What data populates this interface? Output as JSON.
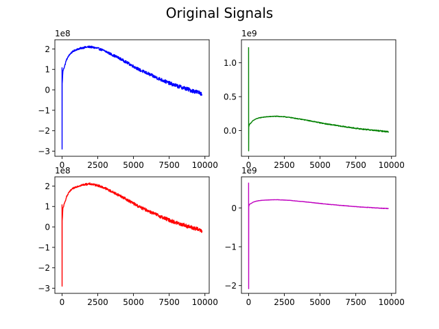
{
  "figure": {
    "title": "Original Signals"
  },
  "chart_data": [
    {
      "type": "line",
      "title": "",
      "xlabel": "",
      "ylabel": "",
      "color": "#0000ff",
      "xlim": [
        -500,
        10300
      ],
      "ylim": [
        -3.25,
        2.45
      ],
      "y_offset_text": "1e8",
      "x_ticks": [
        0,
        2500,
        5000,
        7500,
        10000
      ],
      "x_tick_labels": [
        "0",
        "2500",
        "5000",
        "7500",
        "10000"
      ],
      "y_ticks": [
        -3,
        -2,
        -1,
        0,
        1,
        2
      ],
      "y_tick_labels": [
        "−3",
        "−2",
        "−1",
        "0",
        "1",
        "2"
      ],
      "grid": false,
      "series": [
        {
          "x": [
            0,
            5,
            10,
            30,
            60,
            100,
            200,
            300,
            500,
            700,
            1000,
            1300,
            1600,
            1900,
            2000,
            2200,
            2500,
            3000,
            3500,
            4000,
            4500,
            5000,
            5500,
            6000,
            6500,
            7000,
            7500,
            8000,
            8500,
            9000,
            9500,
            9800
          ],
          "y": [
            1.1,
            -2.9,
            0.3,
            0.5,
            0.9,
            1.0,
            1.2,
            1.45,
            1.7,
            1.85,
            1.97,
            2.03,
            2.08,
            2.1,
            2.1,
            2.07,
            2.03,
            1.9,
            1.72,
            1.55,
            1.35,
            1.15,
            0.95,
            0.8,
            0.63,
            0.48,
            0.33,
            0.2,
            0.1,
            -0.02,
            -0.12,
            -0.18
          ],
          "noise": 0.07
        }
      ]
    },
    {
      "type": "line",
      "title": "",
      "xlabel": "",
      "ylabel": "",
      "color": "#008000",
      "xlim": [
        -500,
        10300
      ],
      "ylim": [
        -0.38,
        1.34
      ],
      "y_offset_text": "1e9",
      "x_ticks": [
        0,
        2500,
        5000,
        7500,
        10000
      ],
      "x_tick_labels": [
        "0",
        "2500",
        "5000",
        "7500",
        "10000"
      ],
      "y_ticks": [
        0,
        0.5,
        1
      ],
      "y_tick_labels": [
        "0.0",
        "0.5",
        "1.0"
      ],
      "grid": false,
      "series": [
        {
          "x": [
            0,
            5,
            10,
            30,
            60,
            100,
            200,
            300,
            500,
            700,
            1000,
            1300,
            1600,
            1900,
            2000,
            2200,
            2500,
            3000,
            3500,
            4000,
            4500,
            5000,
            5500,
            6000,
            6500,
            7000,
            7500,
            8000,
            8500,
            9000,
            9500,
            9800
          ],
          "y": [
            1.23,
            -0.3,
            0.05,
            0.07,
            0.09,
            0.1,
            0.12,
            0.145,
            0.17,
            0.185,
            0.197,
            0.203,
            0.208,
            0.21,
            0.21,
            0.207,
            0.203,
            0.19,
            0.172,
            0.155,
            0.135,
            0.115,
            0.095,
            0.08,
            0.063,
            0.048,
            0.033,
            0.02,
            0.01,
            -0.002,
            -0.012,
            -0.018
          ],
          "noise": 0.006
        }
      ]
    },
    {
      "type": "line",
      "title": "",
      "xlabel": "",
      "ylabel": "",
      "color": "#ff0000",
      "xlim": [
        -500,
        10300
      ],
      "ylim": [
        -3.25,
        2.45
      ],
      "y_offset_text": "1e8",
      "x_ticks": [
        0,
        2500,
        5000,
        7500,
        10000
      ],
      "x_tick_labels": [
        "0",
        "2500",
        "5000",
        "7500",
        "10000"
      ],
      "y_ticks": [
        -3,
        -2,
        -1,
        0,
        1,
        2
      ],
      "y_tick_labels": [
        "−3",
        "−2",
        "−1",
        "0",
        "1",
        "2"
      ],
      "grid": false,
      "series": [
        {
          "x": [
            0,
            5,
            10,
            30,
            60,
            100,
            200,
            300,
            500,
            700,
            1000,
            1300,
            1600,
            1900,
            2000,
            2200,
            2500,
            3000,
            3500,
            4000,
            4500,
            5000,
            5500,
            6000,
            6500,
            7000,
            7500,
            8000,
            8500,
            9000,
            9500,
            9800
          ],
          "y": [
            1.1,
            -2.9,
            0.3,
            0.5,
            0.9,
            1.0,
            1.2,
            1.45,
            1.7,
            1.85,
            1.97,
            2.03,
            2.08,
            2.1,
            2.1,
            2.07,
            2.03,
            1.9,
            1.72,
            1.55,
            1.35,
            1.15,
            0.95,
            0.8,
            0.63,
            0.48,
            0.33,
            0.2,
            0.1,
            -0.02,
            -0.12,
            -0.18
          ],
          "noise": 0.07
        }
      ]
    },
    {
      "type": "line",
      "title": "",
      "xlabel": "",
      "ylabel": "",
      "color": "#bf00bf",
      "xlim": [
        -500,
        10300
      ],
      "ylim": [
        -2.2,
        0.8
      ],
      "y_offset_text": "1e9",
      "x_ticks": [
        0,
        2500,
        5000,
        7500,
        10000
      ],
      "x_tick_labels": [
        "0",
        "2500",
        "5000",
        "7500",
        "10000"
      ],
      "y_ticks": [
        -2,
        -1,
        0
      ],
      "y_tick_labels": [
        "−2",
        "−1",
        "0"
      ],
      "grid": false,
      "series": [
        {
          "x": [
            0,
            5,
            10,
            30,
            60,
            100,
            200,
            300,
            500,
            700,
            1000,
            1300,
            1600,
            1900,
            2000,
            2200,
            2500,
            3000,
            3500,
            4000,
            4500,
            5000,
            5500,
            6000,
            6500,
            7000,
            7500,
            8000,
            8500,
            9000,
            9500,
            9800
          ],
          "y": [
            0.65,
            -2.08,
            0.03,
            0.06,
            0.09,
            0.1,
            0.12,
            0.145,
            0.17,
            0.185,
            0.197,
            0.203,
            0.208,
            0.21,
            0.21,
            0.207,
            0.203,
            0.19,
            0.172,
            0.155,
            0.135,
            0.115,
            0.095,
            0.08,
            0.063,
            0.048,
            0.033,
            0.02,
            0.01,
            -0.002,
            -0.012,
            -0.018
          ],
          "noise": 0.004
        }
      ]
    }
  ]
}
